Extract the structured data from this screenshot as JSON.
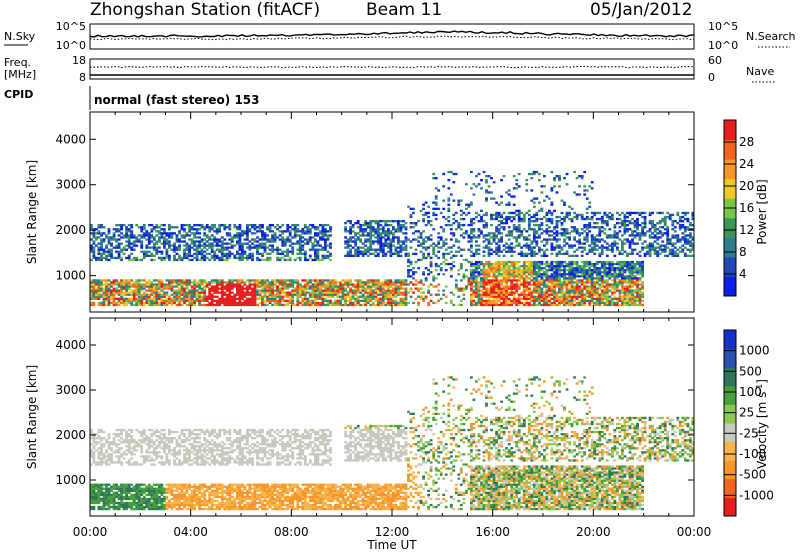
{
  "header": {
    "station": "Zhongshan Station (fitACF)",
    "beam": "Beam 11",
    "date": "05/Jan/2012"
  },
  "panels": {
    "nsky": {
      "label": "N.Sky",
      "right_label": "N.Search",
      "left_ticks": [
        "10^5",
        "10^0"
      ],
      "right_ticks": [
        "10^5",
        "10^0"
      ]
    },
    "freq": {
      "label_line1": "Freq.",
      "label_line2": "[MHz]",
      "left_ticks": [
        "18",
        "8"
      ],
      "right_ticks": [
        "60",
        "0"
      ],
      "right_label": "Nave"
    },
    "cpid": {
      "label": "CPID",
      "value": "normal (fast stereo) 153"
    }
  },
  "colors": {
    "power": [
      "#0a1ee6",
      "#1e46b4",
      "#2e7d8c",
      "#3c9658",
      "#78c846",
      "#f0c828",
      "#f49628",
      "#f0641e",
      "#e61e1e"
    ],
    "velocity": [
      "#e61e1e",
      "#f0641e",
      "#f5962d",
      "#f7b44b",
      "#c8c8be",
      "#8cc850",
      "#46a03c",
      "#2e785a",
      "#2850aa",
      "#1432c8"
    ]
  },
  "chart_data": [
    {
      "type": "heatmap",
      "name": "Power",
      "xlabel": "",
      "ylabel": "Slant Range [km]",
      "yticks": [
        "1000",
        "2000",
        "3000",
        "4000"
      ],
      "ylim": [
        200,
        4600
      ],
      "xlim": [
        0,
        24
      ],
      "colorbar": {
        "label": "Power [dB]",
        "ticks": [
          "4",
          "8",
          "12",
          "16",
          "20",
          "24",
          "28"
        ],
        "range": [
          0,
          32
        ]
      }
    },
    {
      "type": "heatmap",
      "name": "Velocity",
      "xlabel": "Time UT",
      "ylabel": "Slant Range [km]",
      "xticks": [
        "00:00",
        "04:00",
        "08:00",
        "12:00",
        "16:00",
        "20:00",
        "00:00"
      ],
      "yticks": [
        "1000",
        "2000",
        "3000",
        "4000"
      ],
      "ylim": [
        200,
        4600
      ],
      "xlim": [
        0,
        24
      ],
      "colorbar": {
        "label": "Velocity [m s^-1]",
        "ticks": [
          "1000",
          "500",
          "100",
          "25",
          "-25",
          "-100",
          "-500",
          "-1000"
        ]
      }
    }
  ]
}
